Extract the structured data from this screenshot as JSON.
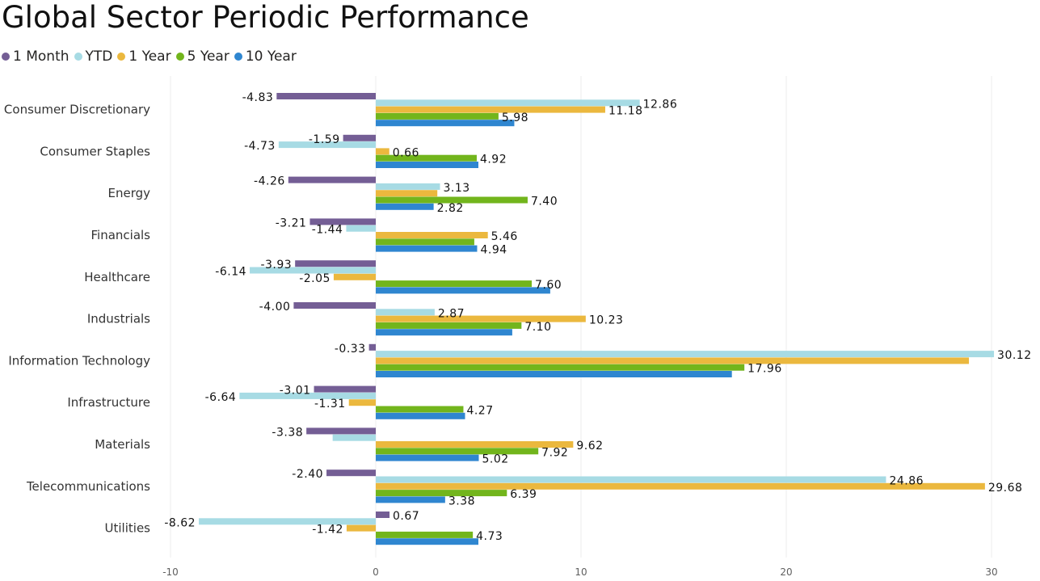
{
  "title": "Global Sector Periodic Performance",
  "chart_data": {
    "type": "bar",
    "orientation": "horizontal",
    "title": "Global Sector Periodic Performance",
    "categories": [
      "Consumer Discretionary",
      "Consumer Staples",
      "Energy",
      "Financials",
      "Healthcare",
      "Industrials",
      "Information Technology",
      "Infrastructure",
      "Materials",
      "Telecommunications",
      "Utilities"
    ],
    "series": [
      {
        "name": "1 Month",
        "color": "#745e95",
        "values": [
          -4.83,
          -1.59,
          -4.26,
          -3.21,
          -3.93,
          -4.0,
          -0.33,
          -3.01,
          -3.38,
          -2.4,
          0.67
        ]
      },
      {
        "name": "YTD",
        "color": "#a7dbe4",
        "values": [
          12.86,
          -4.73,
          3.13,
          -1.44,
          -6.14,
          2.87,
          30.12,
          -6.64,
          -2.1,
          24.86,
          -8.62
        ]
      },
      {
        "name": "1 Year",
        "color": "#ebb83e",
        "values": [
          11.18,
          0.66,
          3.0,
          5.46,
          -2.05,
          10.23,
          28.9,
          -1.31,
          9.62,
          29.68,
          -1.42
        ]
      },
      {
        "name": "5 Year",
        "color": "#72b51c",
        "values": [
          5.98,
          4.92,
          7.4,
          4.8,
          7.6,
          7.1,
          17.96,
          4.27,
          7.92,
          6.39,
          4.73
        ]
      },
      {
        "name": "10 Year",
        "color": "#2f86d0",
        "values": [
          6.75,
          5.0,
          2.82,
          4.94,
          8.5,
          6.65,
          17.35,
          4.35,
          5.02,
          3.38,
          5.0
        ]
      }
    ],
    "data_labels": [
      [
        {
          "s": 0,
          "t": "-4.83"
        },
        {
          "s": 1,
          "t": "12.86"
        },
        {
          "s": 2,
          "t": "11.18"
        },
        {
          "s": 3,
          "t": "5.98"
        }
      ],
      [
        {
          "s": 0,
          "t": "-1.59"
        },
        {
          "s": 1,
          "t": "-4.73"
        },
        {
          "s": 2,
          "t": "0.66"
        },
        {
          "s": 3,
          "t": "4.92"
        }
      ],
      [
        {
          "s": 0,
          "t": "-4.26"
        },
        {
          "s": 1,
          "t": "3.13"
        },
        {
          "s": 3,
          "t": "7.40"
        },
        {
          "s": 4,
          "t": "2.82"
        }
      ],
      [
        {
          "s": 0,
          "t": "-3.21"
        },
        {
          "s": 1,
          "t": "-1.44"
        },
        {
          "s": 2,
          "t": "5.46"
        },
        {
          "s": 4,
          "t": "4.94"
        }
      ],
      [
        {
          "s": 0,
          "t": "-3.93"
        },
        {
          "s": 1,
          "t": "-6.14"
        },
        {
          "s": 2,
          "t": "-2.05"
        },
        {
          "s": 3,
          "t": "7.60"
        }
      ],
      [
        {
          "s": 0,
          "t": "-4.00"
        },
        {
          "s": 1,
          "t": "2.87"
        },
        {
          "s": 2,
          "t": "10.23"
        },
        {
          "s": 3,
          "t": "7.10"
        }
      ],
      [
        {
          "s": 0,
          "t": "-0.33"
        },
        {
          "s": 1,
          "t": "30.12"
        },
        {
          "s": 3,
          "t": "17.96"
        }
      ],
      [
        {
          "s": 0,
          "t": "-3.01"
        },
        {
          "s": 1,
          "t": "-6.64"
        },
        {
          "s": 2,
          "t": "-1.31"
        },
        {
          "s": 3,
          "t": "4.27"
        }
      ],
      [
        {
          "s": 0,
          "t": "-3.38"
        },
        {
          "s": 2,
          "t": "9.62"
        },
        {
          "s": 3,
          "t": "7.92"
        },
        {
          "s": 4,
          "t": "5.02"
        }
      ],
      [
        {
          "s": 0,
          "t": "-2.40"
        },
        {
          "s": 1,
          "t": "24.86"
        },
        {
          "s": 2,
          "t": "29.68"
        },
        {
          "s": 3,
          "t": "6.39"
        },
        {
          "s": 4,
          "t": "3.38"
        }
      ],
      [
        {
          "s": 0,
          "t": "0.67"
        },
        {
          "s": 1,
          "t": "-8.62"
        },
        {
          "s": 2,
          "t": "-1.42"
        },
        {
          "s": 3,
          "t": "4.73"
        }
      ]
    ],
    "xlim": [
      -10,
      30
    ],
    "xticks": [
      "-10",
      "0",
      "10",
      "20",
      "30"
    ],
    "xlabel": "",
    "ylabel": "",
    "grid": true,
    "legend_position": "top-left"
  }
}
